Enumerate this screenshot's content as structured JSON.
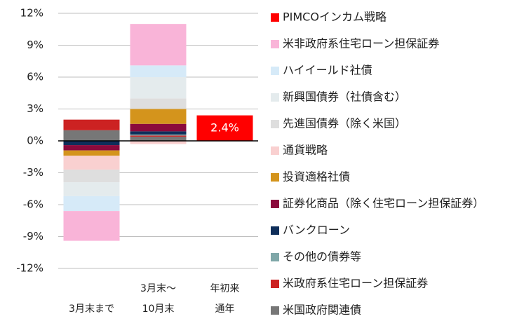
{
  "chart_data": {
    "type": "bar",
    "stacked": true,
    "categories": [
      [
        "3月末まで"
      ],
      [
        "3月末～",
        "10月末"
      ],
      [
        "年初来",
        "通年"
      ]
    ],
    "ylim": [
      -12,
      12
    ],
    "yticks": [
      {
        "value": -12,
        "label": "-12%"
      },
      {
        "value": -9,
        "label": "-9%"
      },
      {
        "value": -6,
        "label": "-6%"
      },
      {
        "value": -3,
        "label": "-3%"
      },
      {
        "value": 0,
        "label": "0%"
      },
      {
        "value": 3,
        "label": "3%"
      },
      {
        "value": 6,
        "label": "6%"
      },
      {
        "value": 9,
        "label": "9%"
      },
      {
        "value": 12,
        "label": "12%"
      }
    ],
    "grid": true,
    "legend": "right",
    "series": [
      {
        "name": "PIMCOインカム戦略",
        "color": "#ff0000",
        "values": [
          null,
          null,
          2.4
        ],
        "value_labels": [
          null,
          null,
          "2.4%"
        ]
      },
      {
        "name": "米非政府系住宅ローン担保証券",
        "color": "#f9b4d8",
        "values": [
          -2.8,
          3.9,
          null
        ]
      },
      {
        "name": "ハイイールド社債",
        "color": "#d6eaf8",
        "values": [
          -1.4,
          1.1,
          null
        ]
      },
      {
        "name": "新興国債券（社債含む）",
        "color": "#e4ebed",
        "values": [
          -1.3,
          2.0,
          null
        ]
      },
      {
        "name": "先進国債券（除く米国）",
        "color": "#dedede",
        "values": [
          -1.2,
          1.0,
          null
        ]
      },
      {
        "name": "通貨戦略",
        "color": "#f9d0d0",
        "values": [
          -1.3,
          -0.3,
          null
        ]
      },
      {
        "name": "投資適格社債",
        "color": "#d4941c",
        "values": [
          -0.5,
          1.4,
          null
        ]
      },
      {
        "name": "証券化商品（除く住宅ローン担保証券）",
        "color": "#8b0a3c",
        "values": [
          -0.5,
          0.7,
          null
        ]
      },
      {
        "name": "バンクローン",
        "color": "#0e2e5a",
        "values": [
          -0.4,
          0.3,
          null
        ]
      },
      {
        "name": "その他の債券等",
        "color": "#7fa7a8",
        "values": [
          null,
          0.1,
          null
        ]
      },
      {
        "name": "米政府系住宅ローン担保証券",
        "color": "#cc2222",
        "values": [
          1.0,
          0.1,
          null
        ]
      },
      {
        "name": "米国政府関連債",
        "color": "#777777",
        "values": [
          1.0,
          0.4,
          null
        ]
      }
    ]
  }
}
